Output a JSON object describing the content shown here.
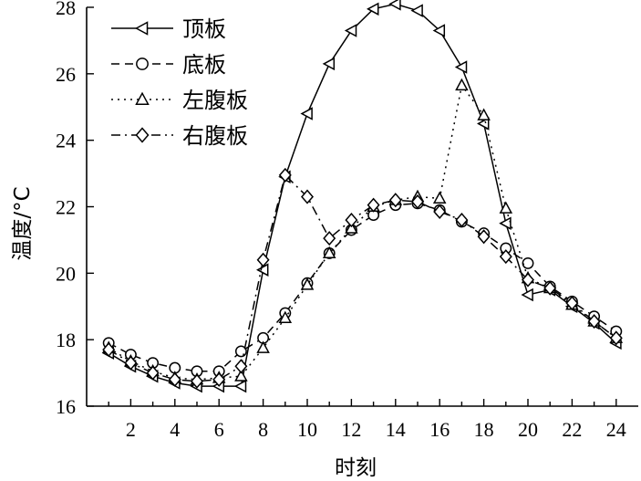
{
  "chart_data": {
    "type": "line",
    "title": "",
    "xlabel": "时刻",
    "ylabel": "温度/°C",
    "xlim": [
      0,
      25
    ],
    "ylim": [
      16,
      28
    ],
    "x_ticks": [
      2,
      4,
      6,
      8,
      10,
      12,
      14,
      16,
      18,
      20,
      22,
      24
    ],
    "y_ticks": [
      16,
      18,
      20,
      22,
      24,
      26,
      28
    ],
    "grid": false,
    "legend_position": "top-left",
    "x": [
      1,
      2,
      3,
      4,
      5,
      6,
      7,
      8,
      9,
      10,
      11,
      12,
      13,
      14,
      15,
      16,
      17,
      18,
      19,
      20,
      21,
      22,
      23,
      24
    ],
    "series": [
      {
        "name": "顶板",
        "marker": "triangle-left",
        "dash": "solid",
        "color": "#000000",
        "values": [
          17.6,
          17.2,
          16.9,
          16.7,
          16.6,
          16.6,
          16.6,
          20.1,
          22.9,
          24.8,
          26.3,
          27.3,
          27.95,
          28.1,
          27.9,
          27.3,
          26.2,
          24.5,
          21.5,
          19.35,
          19.5,
          19.0,
          18.5,
          17.9
        ]
      },
      {
        "name": "底板",
        "marker": "circle",
        "dash": "dashed",
        "color": "#000000",
        "values": [
          17.9,
          17.55,
          17.3,
          17.15,
          17.05,
          17.05,
          17.65,
          18.05,
          18.8,
          19.7,
          20.6,
          21.3,
          21.75,
          22.05,
          22.1,
          21.9,
          21.55,
          21.2,
          20.75,
          20.3,
          19.6,
          19.15,
          18.7,
          18.25
        ]
      },
      {
        "name": "左腹板",
        "marker": "triangle-up",
        "dash": "dotted",
        "color": "#000000",
        "values": [
          17.75,
          17.35,
          17.05,
          16.85,
          16.8,
          16.85,
          16.9,
          17.75,
          18.65,
          19.65,
          20.6,
          21.35,
          22.0,
          22.2,
          22.3,
          22.25,
          25.65,
          24.75,
          21.95,
          19.85,
          19.55,
          19.05,
          18.55,
          18.05
        ]
      },
      {
        "name": "右腹板",
        "marker": "diamond",
        "dash": "dashdot",
        "color": "#000000",
        "values": [
          17.7,
          17.3,
          17.0,
          16.8,
          16.75,
          16.8,
          17.2,
          20.4,
          22.95,
          22.3,
          21.05,
          21.6,
          22.05,
          22.2,
          22.15,
          21.85,
          21.6,
          21.1,
          20.5,
          19.8,
          19.55,
          19.1,
          18.55,
          18.05
        ]
      }
    ]
  }
}
